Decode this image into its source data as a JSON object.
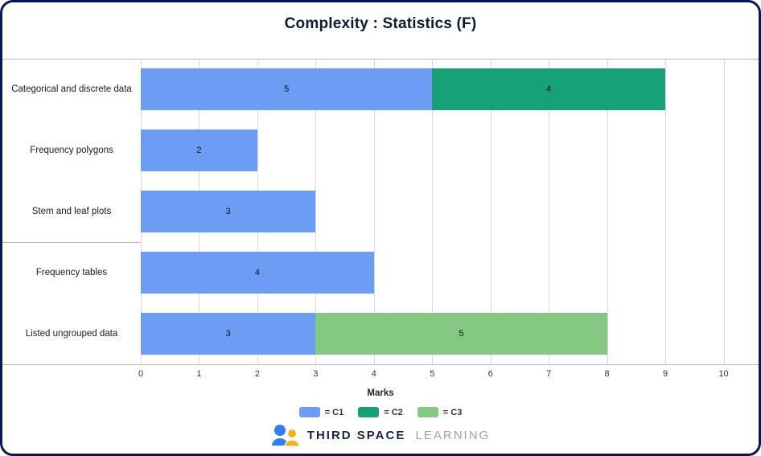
{
  "title": "Complexity : Statistics (F)",
  "chart_data": {
    "type": "bar",
    "orientation": "horizontal",
    "stacked": true,
    "title": "Complexity : Statistics (F)",
    "categories": [
      "Categorical and discrete data",
      "Frequency polygons",
      "Stem and leaf plots",
      "Frequency tables",
      "Listed ungrouped data"
    ],
    "series": [
      {
        "name": "C1",
        "color": "#6C9CF4",
        "values": [
          5,
          2,
          3,
          4,
          3
        ]
      },
      {
        "name": "C2",
        "color": "#18A077",
        "values": [
          4,
          0,
          0,
          0,
          0
        ]
      },
      {
        "name": "C3",
        "color": "#84C884",
        "values": [
          0,
          0,
          0,
          0,
          5
        ]
      }
    ],
    "xlabel": "Marks",
    "ylabel": "",
    "xlim": [
      0,
      10.6
    ],
    "xticks": [
      0,
      1,
      2,
      3,
      4,
      5,
      6,
      7,
      8,
      9,
      10
    ],
    "grid": "vertical",
    "legend_position": "bottom",
    "bar_value_labels": [
      [
        5,
        4
      ],
      [
        2
      ],
      [
        3
      ],
      [
        4
      ],
      [
        3,
        5
      ]
    ]
  },
  "legend": {
    "items": [
      {
        "label": "= C1",
        "color": "#6C9CF4"
      },
      {
        "label": "= C2",
        "color": "#18A077"
      },
      {
        "label": "= C3",
        "color": "#84C884"
      }
    ]
  },
  "footer": {
    "brand_bold": "THIRD SPACE",
    "brand_light": "LEARNING",
    "logo_icon": "two-smiling-figures-icon",
    "logo_blue": "#2F80ED",
    "logo_yellow": "#F2B41C"
  },
  "colors": {
    "border": "#0B1654",
    "gridline": "#d9d9d9",
    "axis_line": "#b9b9b9",
    "title_text": "#121933"
  }
}
